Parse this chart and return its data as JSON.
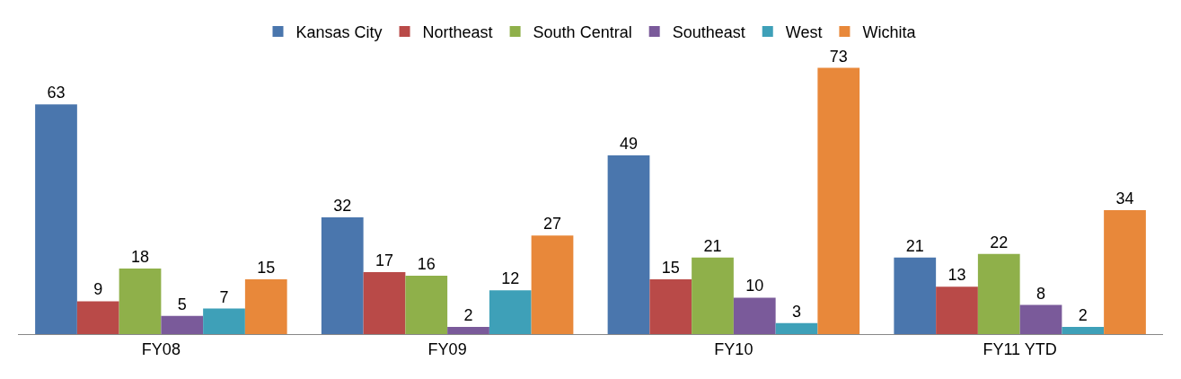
{
  "chart_data": {
    "type": "bar",
    "categories": [
      "FY08",
      "FY09",
      "FY10",
      "FY11 YTD"
    ],
    "series": [
      {
        "name": "Kansas City",
        "color": "#4a76ad",
        "values": [
          63,
          32,
          49,
          21
        ]
      },
      {
        "name": "Northeast",
        "color": "#b94a48",
        "values": [
          9,
          17,
          15,
          13
        ]
      },
      {
        "name": "South Central",
        "color": "#8fb04a",
        "values": [
          18,
          16,
          21,
          22
        ]
      },
      {
        "name": "Southeast",
        "color": "#7a5a9a",
        "values": [
          5,
          2,
          10,
          8
        ]
      },
      {
        "name": "West",
        "color": "#3ea0b8",
        "values": [
          7,
          12,
          3,
          2
        ]
      },
      {
        "name": "Wichita",
        "color": "#e8883a",
        "values": [
          15,
          27,
          73,
          34
        ]
      }
    ],
    "data_labels": true,
    "legend": "top",
    "tick_labels": "x"
  }
}
